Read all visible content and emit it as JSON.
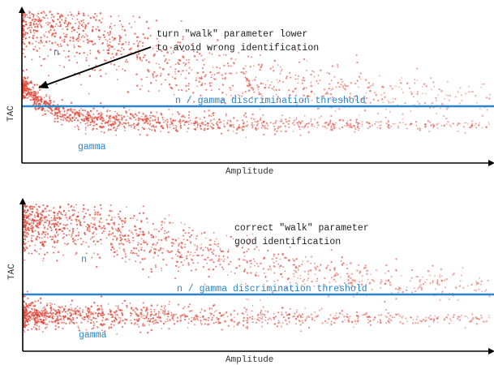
{
  "colors": {
    "scatter": "#e0483a",
    "threshold": "#2a84c6",
    "axis": "#000000",
    "text": "#222222",
    "blue_text": "#2a84c6"
  },
  "chart_data": [
    {
      "type": "scatter",
      "xlabel": "Amplitude",
      "ylabel": "TAC",
      "xlim": [
        0,
        100
      ],
      "ylim": [
        0,
        100
      ],
      "threshold": {
        "label": "n / gamma discrimination threshold",
        "y": 38
      },
      "annotation": {
        "text_lines": [
          "turn \"walk\" parameter lower",
          "to avoid wrong identification"
        ],
        "text_pos": [
          28,
          86
        ],
        "arrow_from": [
          25,
          75
        ],
        "arrow_to": [
          3.5,
          52
        ]
      },
      "band_labels": [
        {
          "text": "n",
          "x": 7,
          "y": 70
        },
        {
          "text": "gamma",
          "x": 12,
          "y": 12
        }
      ],
      "bands": [
        {
          "name": "n",
          "points": [
            [
              2,
              97
            ],
            [
              6,
              93
            ],
            [
              12,
              86
            ],
            [
              20,
              77
            ],
            [
              30,
              66
            ],
            [
              42,
              57
            ],
            [
              55,
              51
            ],
            [
              70,
              47
            ],
            [
              85,
              45
            ],
            [
              100,
              43
            ]
          ],
          "spread": 9,
          "density": 1400
        },
        {
          "name": "gamma",
          "points": [
            [
              0,
              50
            ],
            [
              3,
              42
            ],
            [
              8,
              32
            ],
            [
              15,
              28
            ],
            [
              30,
              26
            ],
            [
              50,
              25
            ],
            [
              70,
              24.5
            ],
            [
              100,
              24
            ]
          ],
          "spread": 2.6,
          "density": 1300
        }
      ]
    },
    {
      "type": "scatter",
      "xlabel": "Amplitude",
      "ylabel": "TAC",
      "xlim": [
        0,
        100
      ],
      "ylim": [
        0,
        100
      ],
      "threshold": {
        "label": "n / gamma discrimination threshold",
        "y": 43
      },
      "annotation": {
        "text_lines": [
          "correct \"walk\" parameter",
          "good identification"
        ]
      },
      "band_labels": [
        {
          "text": "n",
          "x": 13,
          "y": 62
        },
        {
          "text": "gamma",
          "x": 12,
          "y": 16
        }
      ],
      "bands": [
        {
          "name": "n",
          "points": [
            [
              0,
              88
            ],
            [
              10,
              86
            ],
            [
              20,
              80
            ],
            [
              30,
              72
            ],
            [
              40,
              65
            ],
            [
              55,
              56
            ],
            [
              70,
              50
            ],
            [
              85,
              46
            ],
            [
              100,
              44
            ]
          ],
          "spread": 7.5,
          "density": 1500
        },
        {
          "name": "gamma",
          "points": [
            [
              0,
              24
            ],
            [
              10,
              23.5
            ],
            [
              30,
              22.5
            ],
            [
              50,
              22
            ],
            [
              70,
              21.5
            ],
            [
              100,
              21
            ]
          ],
          "spread": 3.2,
          "density": 1300
        }
      ]
    }
  ]
}
